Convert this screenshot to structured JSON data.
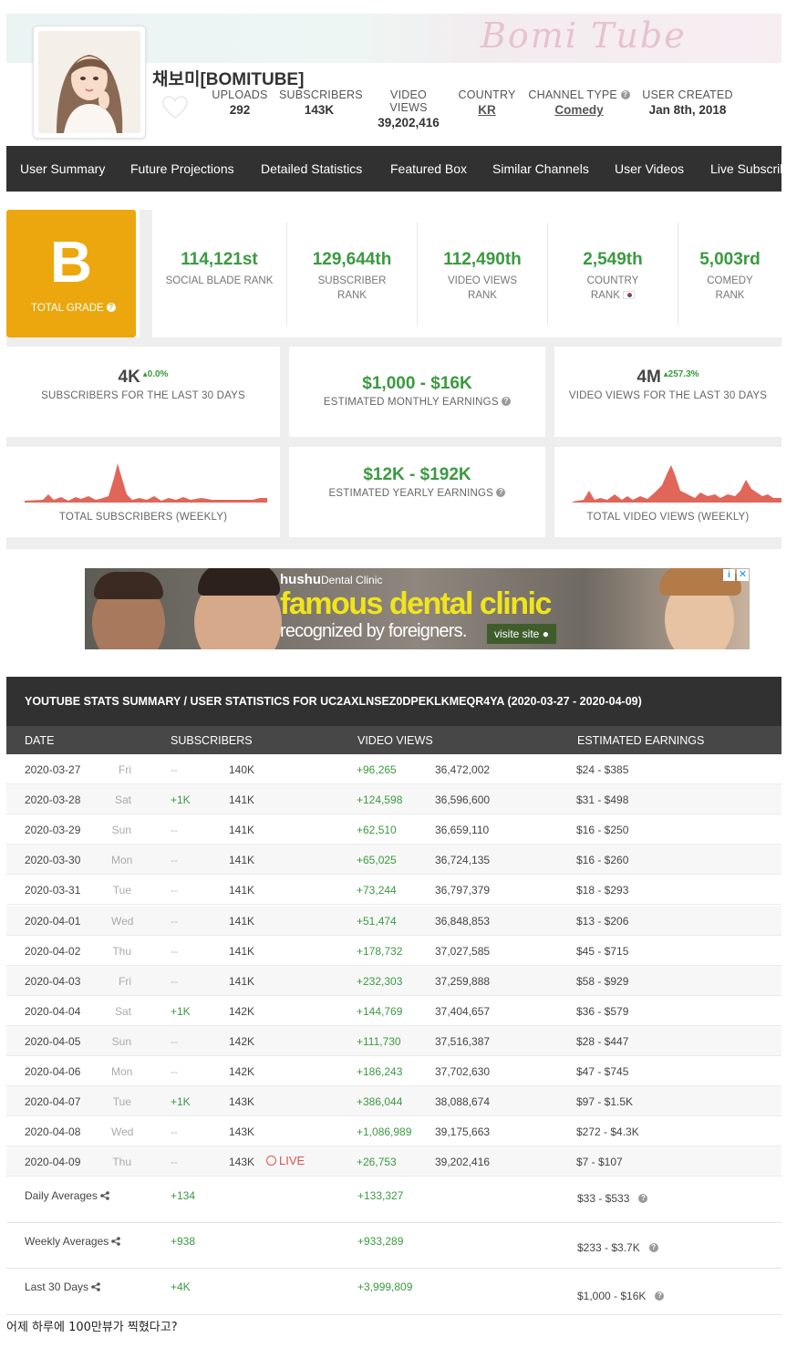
{
  "header": {
    "banner_text": "Bomi Tube",
    "channel_name": "채보미[BOMITUBE]",
    "stats": [
      {
        "label": "UPLOADS",
        "value": "292"
      },
      {
        "label": "SUBSCRIBERS",
        "value": "143K"
      },
      {
        "label": "VIDEO VIEWS",
        "value": "39,202,416"
      },
      {
        "label": "COUNTRY",
        "value": "KR"
      },
      {
        "label": "CHANNEL TYPE",
        "value": "Comedy"
      },
      {
        "label": "USER CREATED",
        "value": "Jan 8th, 2018"
      }
    ]
  },
  "nav": [
    "User Summary",
    "Future Projections",
    "Detailed Statistics",
    "Featured Box",
    "Similar Channels",
    "User Videos",
    "Live Subscrib"
  ],
  "grade": {
    "letter": "B",
    "label": "TOTAL GRADE"
  },
  "ranks": [
    {
      "value": "114,121st",
      "label": "SOCIAL BLADE RANK"
    },
    {
      "value": "129,644th",
      "label": "SUBSCRIBER RANK"
    },
    {
      "value": "112,490th",
      "label": "VIDEO VIEWS RANK"
    },
    {
      "value": "2,549th",
      "label": "COUNTRY RANK"
    },
    {
      "value": "5,003rd",
      "label": "COMEDY RANK"
    }
  ],
  "summary": {
    "subs_30": {
      "value": "4K",
      "change": "0.0%",
      "label": "SUBSCRIBERS FOR THE LAST 30 DAYS"
    },
    "monthly": {
      "value": "$1,000 - $16K",
      "label": "ESTIMATED MONTHLY EARNINGS"
    },
    "views_30": {
      "value": "4M",
      "change": "257.3%",
      "label": "VIDEO VIEWS FOR THE LAST 30 DAYS"
    },
    "subs_weekly_label": "TOTAL SUBSCRIBERS (WEEKLY)",
    "yearly": {
      "value": "$12K - $192K",
      "label": "ESTIMATED YEARLY EARNINGS"
    },
    "views_weekly_label": "TOTAL VIDEO VIEWS (WEEKLY)"
  },
  "ad": {
    "brand": "hushu",
    "brand_suffix": "Dental Clinic",
    "headline": "famous dental clinic",
    "sub": "recognized by foreigners.",
    "cta": "visite site"
  },
  "table": {
    "title": "YOUTUBE STATS SUMMARY / USER STATISTICS FOR UC2AXLNSEZ0DPEKLKMEQR4YA (2020-03-27 - 2020-04-09)",
    "headers": [
      "DATE",
      "SUBSCRIBERS",
      "VIDEO VIEWS",
      "ESTIMATED EARNINGS"
    ],
    "rows": [
      {
        "date": "2020-03-27",
        "day": "Fri",
        "sub_change": "--",
        "subs": "140K",
        "view_change": "+96,265",
        "views": "36,472,002",
        "earn": "$24  -  $385"
      },
      {
        "date": "2020-03-28",
        "day": "Sat",
        "sub_change": "+1K",
        "subs": "141K",
        "view_change": "+124,598",
        "views": "36,596,600",
        "earn": "$31  -  $498"
      },
      {
        "date": "2020-03-29",
        "day": "Sun",
        "sub_change": "--",
        "subs": "141K",
        "view_change": "+62,510",
        "views": "36,659,110",
        "earn": "$16  -  $250"
      },
      {
        "date": "2020-03-30",
        "day": "Mon",
        "sub_change": "--",
        "subs": "141K",
        "view_change": "+65,025",
        "views": "36,724,135",
        "earn": "$16  -  $260"
      },
      {
        "date": "2020-03-31",
        "day": "Tue",
        "sub_change": "--",
        "subs": "141K",
        "view_change": "+73,244",
        "views": "36,797,379",
        "earn": "$18  -  $293"
      },
      {
        "date": "2020-04-01",
        "day": "Wed",
        "sub_change": "--",
        "subs": "141K",
        "view_change": "+51,474",
        "views": "36,848,853",
        "earn": "$13  -  $206"
      },
      {
        "date": "2020-04-02",
        "day": "Thu",
        "sub_change": "--",
        "subs": "141K",
        "view_change": "+178,732",
        "views": "37,027,585",
        "earn": "$45  -  $715"
      },
      {
        "date": "2020-04-03",
        "day": "Fri",
        "sub_change": "--",
        "subs": "141K",
        "view_change": "+232,303",
        "views": "37,259,888",
        "earn": "$58  -  $929"
      },
      {
        "date": "2020-04-04",
        "day": "Sat",
        "sub_change": "+1K",
        "subs": "142K",
        "view_change": "+144,769",
        "views": "37,404,657",
        "earn": "$36  -  $579"
      },
      {
        "date": "2020-04-05",
        "day": "Sun",
        "sub_change": "--",
        "subs": "142K",
        "view_change": "+111,730",
        "views": "37,516,387",
        "earn": "$28  -  $447"
      },
      {
        "date": "2020-04-06",
        "day": "Mon",
        "sub_change": "--",
        "subs": "142K",
        "view_change": "+186,243",
        "views": "37,702,630",
        "earn": "$47  -  $745"
      },
      {
        "date": "2020-04-07",
        "day": "Tue",
        "sub_change": "+1K",
        "subs": "143K",
        "view_change": "+386,044",
        "views": "38,088,674",
        "earn": "$97  -  $1.5K"
      },
      {
        "date": "2020-04-08",
        "day": "Wed",
        "sub_change": "--",
        "subs": "143K",
        "view_change": "+1,086,989",
        "views": "39,175,663",
        "earn": "$272  -  $4.3K"
      },
      {
        "date": "2020-04-09",
        "day": "Thu",
        "sub_change": "--",
        "subs": "143K",
        "view_change": "+26,753",
        "views": "39,202,416",
        "earn": "$7  -  $107",
        "live": "LIVE"
      }
    ],
    "averages": [
      {
        "label": "Daily Averages",
        "subs": "+134",
        "views": "+133,327",
        "earn": "$33  -  $533"
      },
      {
        "label": "Weekly Averages",
        "subs": "+938",
        "views": "+933,289",
        "earn": "$233  -  $3.7K"
      },
      {
        "label": "Last 30 Days",
        "subs": "+4K",
        "views": "+3,999,809",
        "earn": "$1,000  -  $16K"
      }
    ]
  },
  "footer_text": "어제 하루에 100만뷰가 찍혔다고?",
  "colors": {
    "green": "#3a9a40",
    "grade": "#eba70d",
    "nav": "#313131",
    "chart_fill": "#e0665a"
  }
}
